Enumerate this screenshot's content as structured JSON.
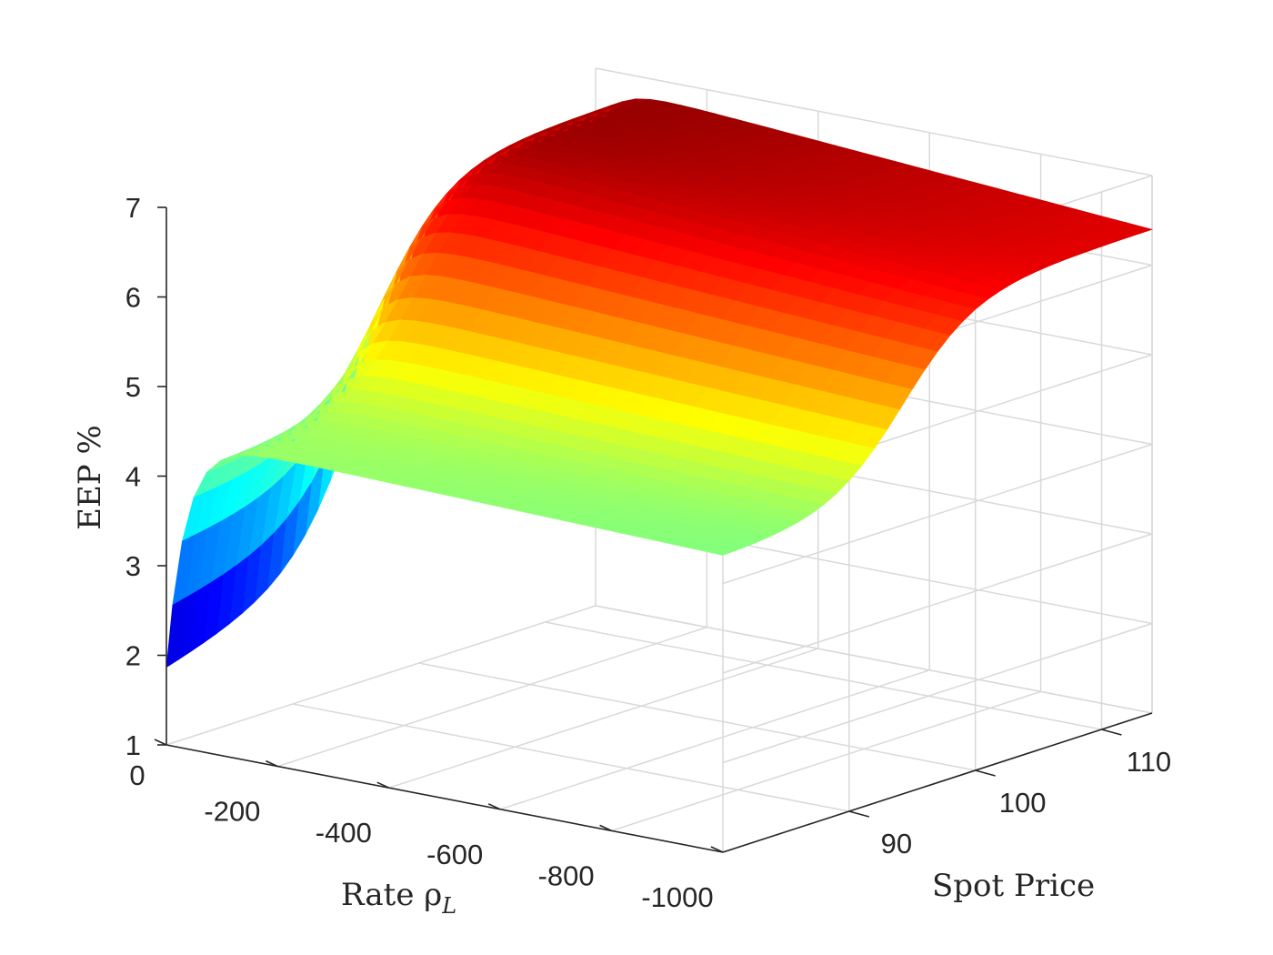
{
  "chart_data": {
    "type": "surface",
    "colormap": "jet",
    "grid": true,
    "axes": {
      "x": {
        "label": "Rate ρ",
        "label_subscript": "L",
        "range": [
          0,
          -1000
        ],
        "ticks": [
          0,
          -200,
          -400,
          -600,
          -800,
          -1000
        ],
        "tick_labels": [
          "0",
          "-200",
          "-400",
          "-600",
          "-800",
          "-1000"
        ]
      },
      "y": {
        "label": "Spot Price",
        "range": [
          80,
          114
        ],
        "ticks": [
          90,
          100,
          110
        ],
        "tick_labels": [
          "90",
          "100",
          "110"
        ]
      },
      "z": {
        "label": "EEP %",
        "range": [
          1,
          7
        ],
        "ticks": [
          1,
          2,
          3,
          4,
          5,
          6,
          7
        ],
        "tick_labels": [
          "1",
          "2",
          "3",
          "4",
          "5",
          "6",
          "7"
        ]
      }
    },
    "surface": {
      "rate_grid": [
        0,
        -100,
        -200,
        -300,
        -400,
        -500,
        -600,
        -700,
        -800,
        -900,
        -1000
      ],
      "spot_grid": [
        80,
        84,
        88,
        92,
        96,
        100,
        104,
        108,
        112,
        114
      ],
      "eep_corners": {
        "rate_0_spot_80": 1.85,
        "rate_0_spot_114": 6.85,
        "rate_-1000_spot_80": 4.3,
        "rate_-1000_spot_114": 6.4
      },
      "eep_at_low_spot_plateau": 4.45
    }
  }
}
